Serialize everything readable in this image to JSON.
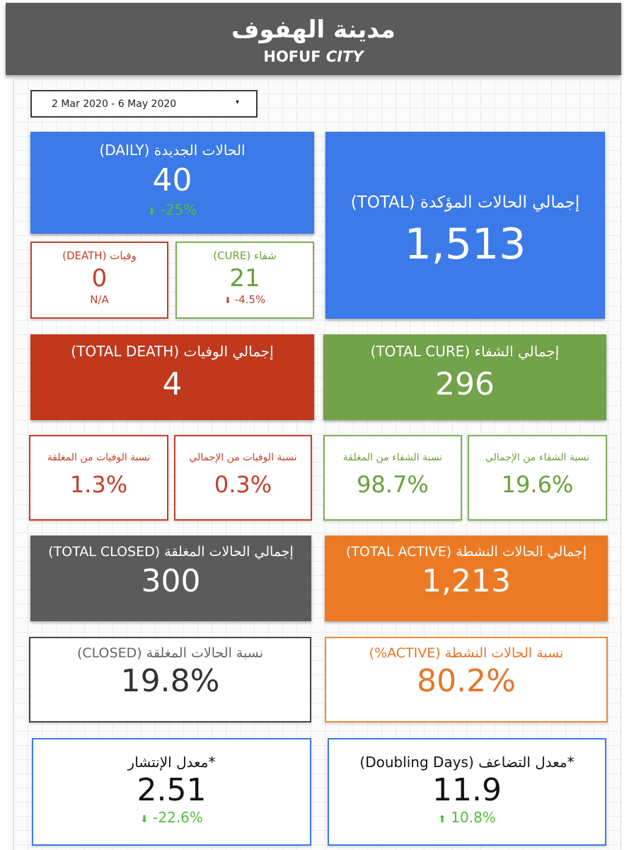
{
  "header": {
    "title_ar": "مدينة الهفوف",
    "title_en_main": "HOFUF",
    "title_en_italic": "CITY"
  },
  "date_range": {
    "value": "2 Mar 2020 - 6 May 2020",
    "caret": "▾"
  },
  "icons": {
    "arrow_down": "⬇",
    "arrow_up": "⬆"
  },
  "colors": {
    "blue": "#3b7ae8",
    "red": "#c1381c",
    "green": "#72a24a",
    "gray": "#5b5b5b",
    "orange": "#ec7a25"
  },
  "cards": {
    "new_daily": {
      "label": "الحالات الجديدة (DAILY)",
      "value": "40",
      "change": "-25%",
      "trend": "down"
    },
    "total_confirmed": {
      "label": "إجمالي الحالات المؤكدة (TOTAL)",
      "value": "1,513"
    },
    "death": {
      "label": "وفيات (DEATH)",
      "value": "0",
      "change": "N/A"
    },
    "cure": {
      "label": "شفاء (CURE)",
      "value": "21",
      "change": "-4.5%",
      "trend": "down"
    },
    "total_death": {
      "label": "إجمالي الوفيات (TOTAL DEATH)",
      "value": "4"
    },
    "total_cure": {
      "label": "إجمالي الشفاء (TOTAL CURE)",
      "value": "296"
    },
    "death_rate_closed": {
      "label": "نسبة الوفيات من المغلقة",
      "value": "1.3%"
    },
    "death_rate_total": {
      "label": "نسبة الوفيات من الإجمالي",
      "value": "0.3%"
    },
    "cure_rate_closed": {
      "label": "نسبة الشفاء من المغلقة",
      "value": "98.7%"
    },
    "cure_rate_total": {
      "label": "نسبة الشفاء من الإجمالي",
      "value": "19.6%"
    },
    "total_closed": {
      "label": "إجمالي الحالات المغلقة (TOTAL CLOSED)",
      "value": "300"
    },
    "total_active": {
      "label": "إجمالي الحالات النشطة (TOTAL ACTIVE)",
      "value": "1,213"
    },
    "closed_pct": {
      "label": "نسبة الحالات المغلقة (CLOSED)",
      "value": "19.8%"
    },
    "active_pct": {
      "label": "نسبة الحالات النشطة (ACTIVE%)",
      "value": "80.2%"
    },
    "spread_rate": {
      "label": "*معدل الإنتشار",
      "value": "2.51",
      "change": "-22.6%",
      "trend": "down"
    },
    "doubling_days": {
      "label": "*معدل التضاعف (Doubling Days)",
      "value": "11.9",
      "change": "10.8%",
      "trend": "up"
    }
  }
}
